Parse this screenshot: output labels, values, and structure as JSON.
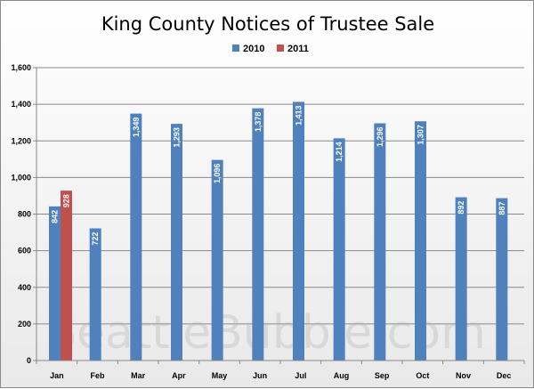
{
  "chart_data": {
    "type": "bar",
    "title": "King County Notices of Trustee Sale",
    "categories": [
      "Jan",
      "Feb",
      "Mar",
      "Apr",
      "May",
      "Jun",
      "Jul",
      "Aug",
      "Sep",
      "Oct",
      "Nov",
      "Dec"
    ],
    "series": [
      {
        "name": "2010",
        "color": "#4f81bd",
        "values": [
          842,
          722,
          1349,
          1293,
          1096,
          1378,
          1413,
          1214,
          1296,
          1307,
          892,
          887
        ],
        "labels": [
          "842",
          "722",
          "1,349",
          "1,293",
          "1,096",
          "1,378",
          "1,413",
          "1,214",
          "1,296",
          "1,307",
          "892",
          "887"
        ]
      },
      {
        "name": "2011",
        "color": "#c0504d",
        "values": [
          928,
          null,
          null,
          null,
          null,
          null,
          null,
          null,
          null,
          null,
          null,
          null
        ],
        "labels": [
          "928",
          "",
          "",
          "",
          "",
          "",
          "",
          "",
          "",
          "",
          "",
          ""
        ]
      }
    ],
    "ylim": [
      0,
      1600
    ],
    "yticks": [
      0,
      200,
      400,
      600,
      800,
      1000,
      1200,
      1400,
      1600
    ],
    "ytick_labels": [
      "0",
      "200",
      "400",
      "600",
      "800",
      "1,000",
      "1,200",
      "1,400",
      "1,600"
    ],
    "grid": true,
    "legend": "top-center",
    "xlabel": "",
    "ylabel": ""
  },
  "watermark": "SeattleBubble.com"
}
